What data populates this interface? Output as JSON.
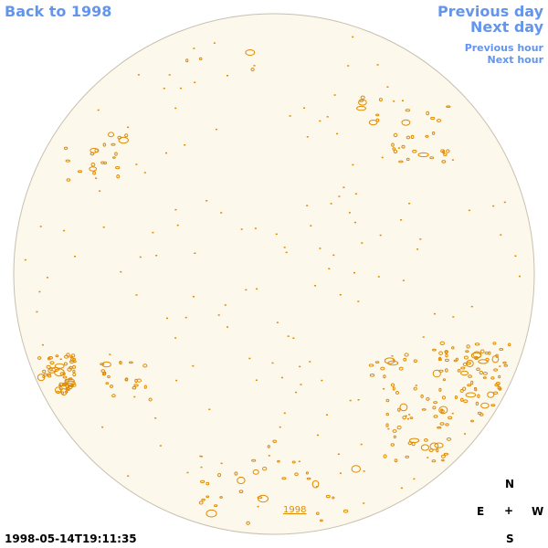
{
  "nav": {
    "back_label": "Back to 1998",
    "previous_day_label": "Previous day",
    "next_day_label": "Next day",
    "previous_hour_label": "Previous hour",
    "next_hour_label": "Next hour"
  },
  "image": {
    "timestamp": "1998-05-14T19:11:35",
    "year_label": "1998",
    "disk_fill_color": "#fdf8ec",
    "disk_stroke_color": "#c8c0ae",
    "contour_color": "#e08a00"
  },
  "compass": {
    "north": "N",
    "east": "E",
    "center": "+",
    "west": "W",
    "south": "S"
  },
  "colors": {
    "link": "#6495ed",
    "text": "#000000"
  }
}
